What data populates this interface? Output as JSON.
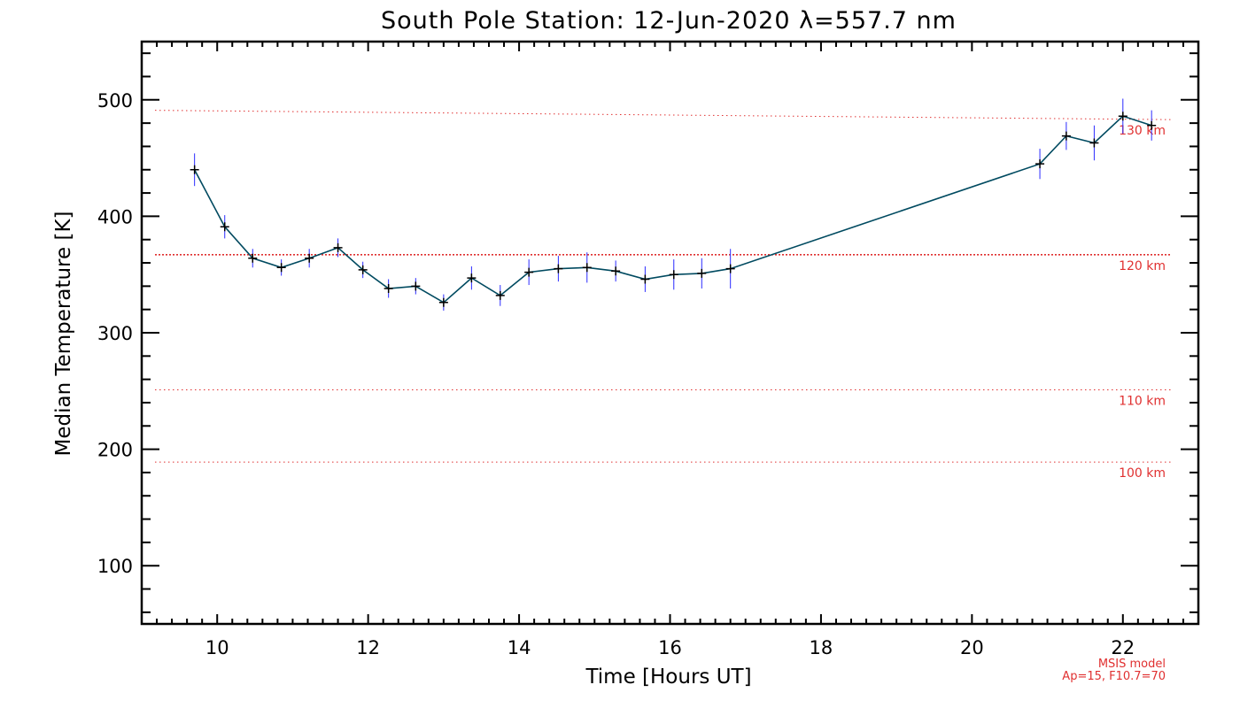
{
  "chart_data": {
    "type": "line",
    "title": "South Pole Station: 12-Jun-2020 λ=557.7 nm",
    "xlabel": "Time [Hours UT]",
    "ylabel": "Median Temperature [K]",
    "xlim": [
      9.0,
      23.0
    ],
    "ylim": [
      50,
      550
    ],
    "xticks": [
      10,
      12,
      14,
      16,
      18,
      20,
      22
    ],
    "yticks": [
      100,
      200,
      300,
      400,
      500
    ],
    "colors": {
      "line": "#004a60",
      "marker": "#000000",
      "error_bar": "#2b2bff",
      "reference": "#e03030",
      "axes": "#000000"
    },
    "series": [
      {
        "name": "Median Temperature",
        "x": [
          9.7,
          10.1,
          10.47,
          10.85,
          11.22,
          11.6,
          11.93,
          12.27,
          12.63,
          13.0,
          13.37,
          13.75,
          14.13,
          14.52,
          14.9,
          15.28,
          15.67,
          16.05,
          16.42,
          16.8,
          20.9,
          21.25,
          21.62,
          22.0,
          22.38
        ],
        "y": [
          440,
          391,
          364,
          356,
          364,
          373,
          354,
          338,
          340,
          326,
          347,
          332,
          352,
          355,
          356,
          353,
          346,
          350,
          351,
          355,
          445,
          469,
          463,
          486,
          478
        ],
        "err": [
          14,
          10,
          8,
          7,
          8,
          8,
          7,
          8,
          7,
          7,
          10,
          9,
          11,
          11,
          13,
          9,
          11,
          13,
          13,
          17,
          13,
          12,
          15,
          15,
          13
        ]
      }
    ],
    "reference_lines": [
      {
        "label": "130 km",
        "y_start": 491,
        "y_end": 483,
        "style": "dotted"
      },
      {
        "label": "120 km",
        "y_start": 367,
        "y_end": 367,
        "style": "dense-dotted"
      },
      {
        "label": "110 km",
        "y_start": 251,
        "y_end": 251,
        "style": "dotted"
      },
      {
        "label": "100 km",
        "y_start": 189,
        "y_end": 189,
        "style": "dotted"
      }
    ],
    "annotation": {
      "line1": "MSIS model",
      "line2": "Ap=15, F10.7=70"
    }
  }
}
